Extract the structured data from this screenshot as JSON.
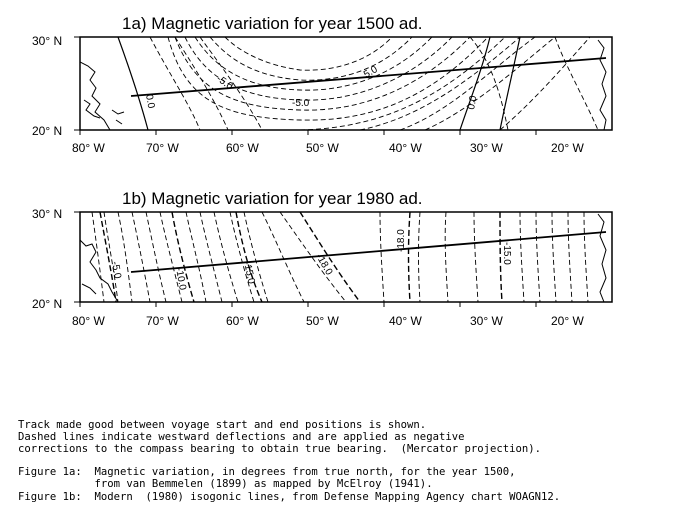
{
  "maps": [
    {
      "id": "1a",
      "title": "1a)  Magnetic variation for year 1500 ad.",
      "lat_labels": [
        "30° N",
        "20° N"
      ],
      "lon_labels": [
        "80° W",
        "70° W",
        "60° W",
        "50° W",
        "40° W",
        "30° W",
        "20° W"
      ],
      "contour_labels": [
        "0.0",
        "-5.0",
        "-5.0",
        "5.0",
        "0.0"
      ],
      "track": {
        "start": "",
        "end": ""
      }
    },
    {
      "id": "1b",
      "title": "1b)  Magnetic variation for year 1980 ad.",
      "lat_labels": [
        "30° N",
        "20° N"
      ],
      "lon_labels": [
        "80° W",
        "70° W",
        "60° W",
        "50° W",
        "40° W",
        "30° W",
        "20° W"
      ],
      "contour_labels": [
        "-5.0",
        "-10.0",
        "-15.0",
        "-18.0",
        "-18.0",
        "-15.0"
      ]
    }
  ],
  "caption": {
    "note": "Track made good between voyage start and end positions is shown.\nDashed lines indicate westward deflections and are applied as negative\ncorrections to the compass bearing to obtain true bearing.  (Mercator projection).",
    "fig1a": "Figure 1a:  Magnetic variation, in degrees from true north, for the year 1500,\n            from van Bemmelen (1899) as mapped by McElroy (1941).",
    "fig1b": "Figure 1b:  Modern  (1980) isogonic lines, from Defense Mapping Agency chart WOAGN12."
  },
  "colors": {
    "ink": "#000000",
    "paper": "#ffffff"
  }
}
